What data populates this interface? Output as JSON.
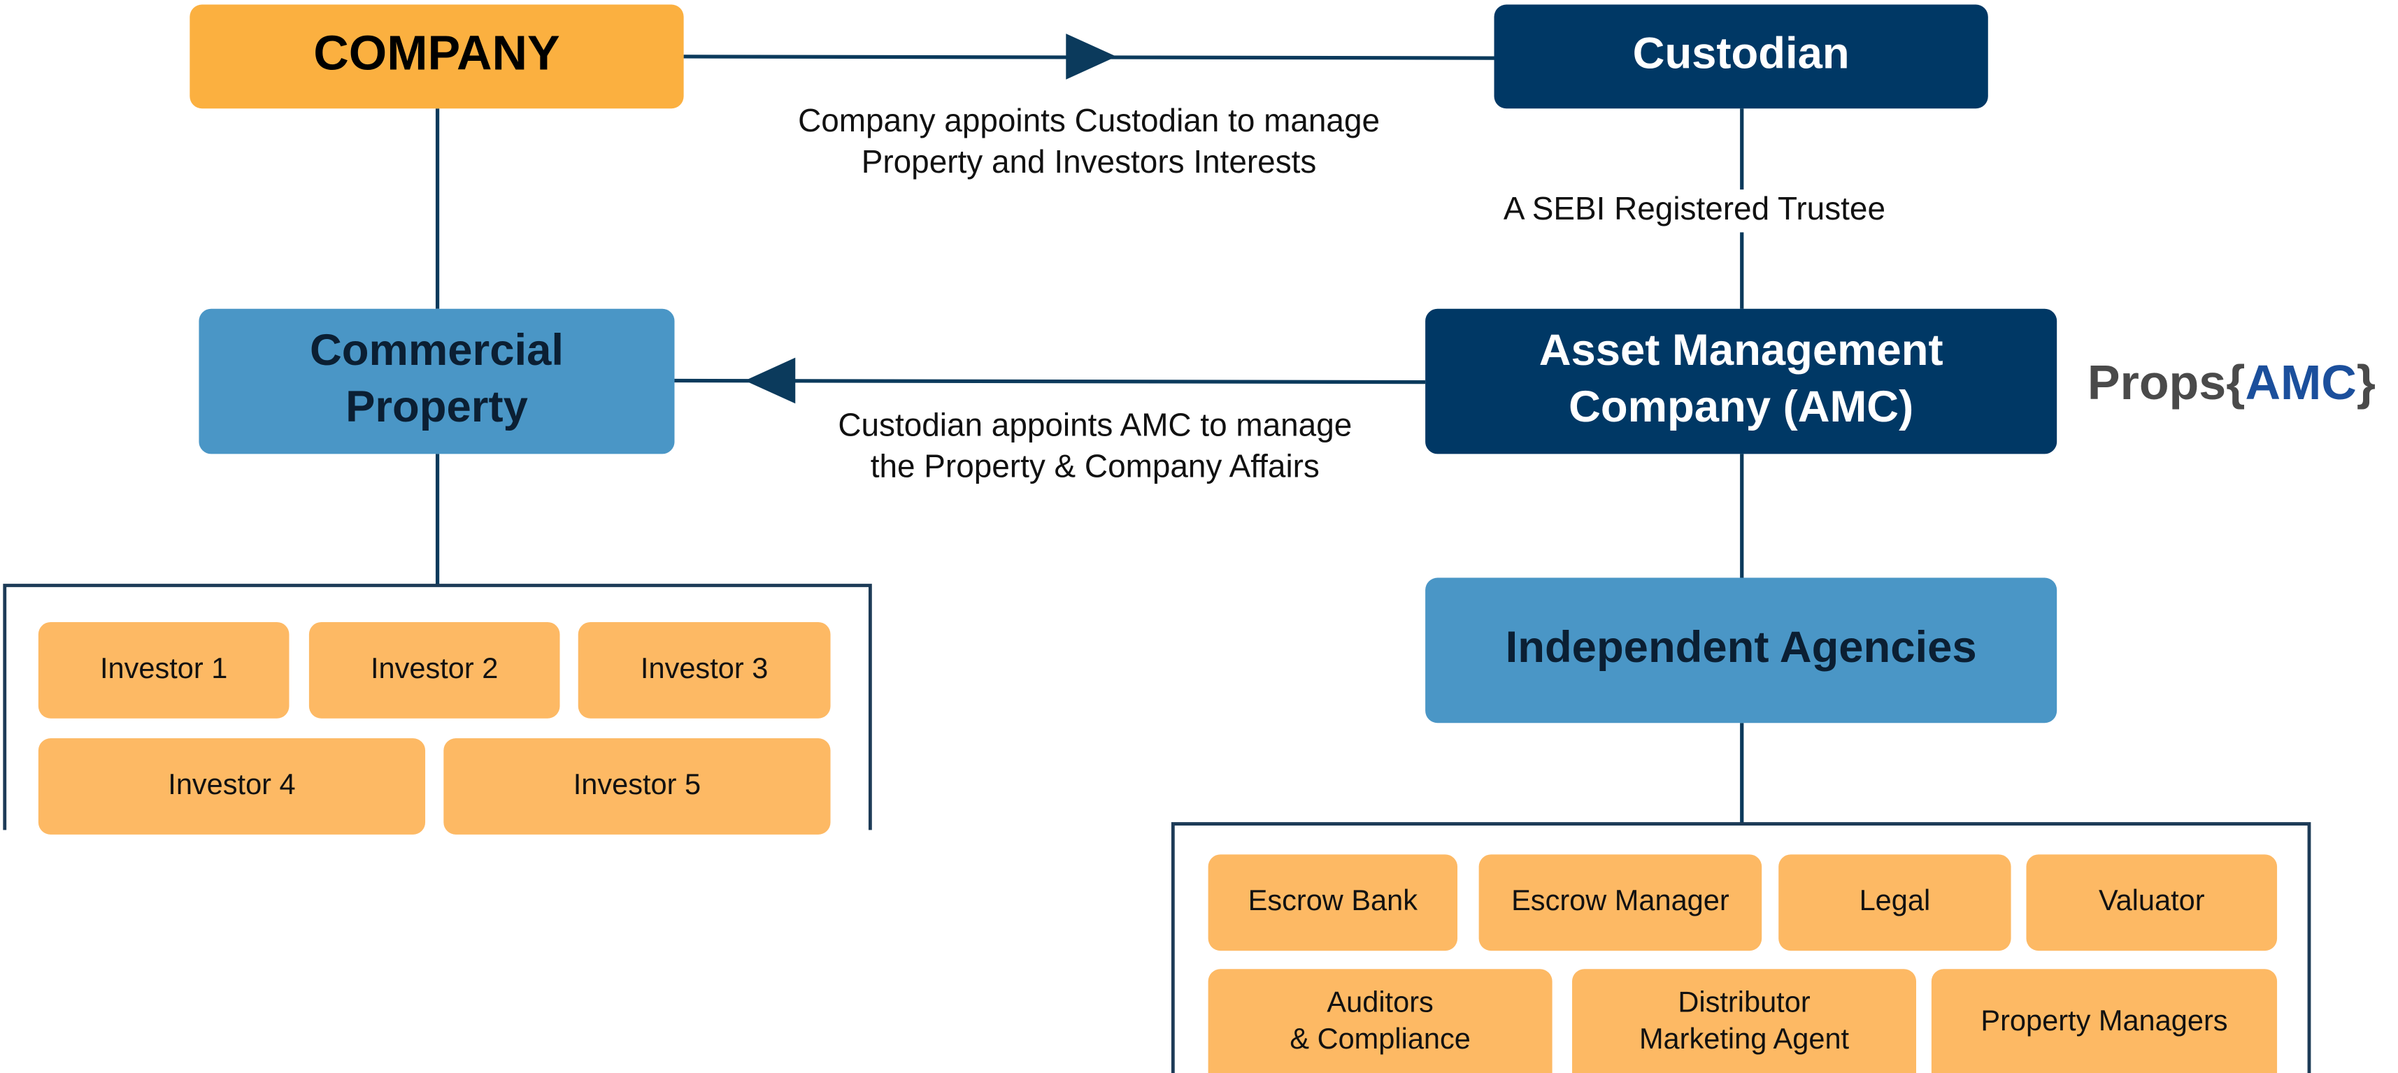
{
  "nodes": [
    {
      "label": [
        "COMPANY"
      ]
    },
    {
      "label": [
        "Custodian"
      ]
    },
    {
      "label": [
        "Commercial",
        "Property"
      ]
    },
    {
      "label": [
        "Asset Management",
        "Company (AMC)"
      ]
    },
    {
      "label": [
        "Independent Agencies"
      ]
    }
  ],
  "edges": [
    {
      "label": [
        "Company appoints Custodian to manage",
        "Property and Investors Interests"
      ]
    },
    {
      "label": [
        "A SEBI Registered Trustee"
      ]
    },
    {
      "label": [
        "Custodian appoints AMC to manage",
        "the Property & Company Affairs"
      ]
    }
  ],
  "investors": [
    [
      "Investor 1"
    ],
    [
      "Investor 2"
    ],
    [
      "Investor 3"
    ],
    [
      "Investor 4"
    ],
    [
      "Investor 5"
    ]
  ],
  "agencies": [
    [
      "Escrow Bank"
    ],
    [
      "Escrow Manager"
    ],
    [
      "Legal"
    ],
    [
      "Valuator"
    ],
    [
      "Auditors",
      "& Compliance"
    ],
    [
      "Distributor",
      "Marketing Agent"
    ],
    [
      "Property Managers"
    ]
  ],
  "logo": {
    "prefix": "Props",
    "open": "{",
    "name": "AMC",
    "close": "}"
  }
}
